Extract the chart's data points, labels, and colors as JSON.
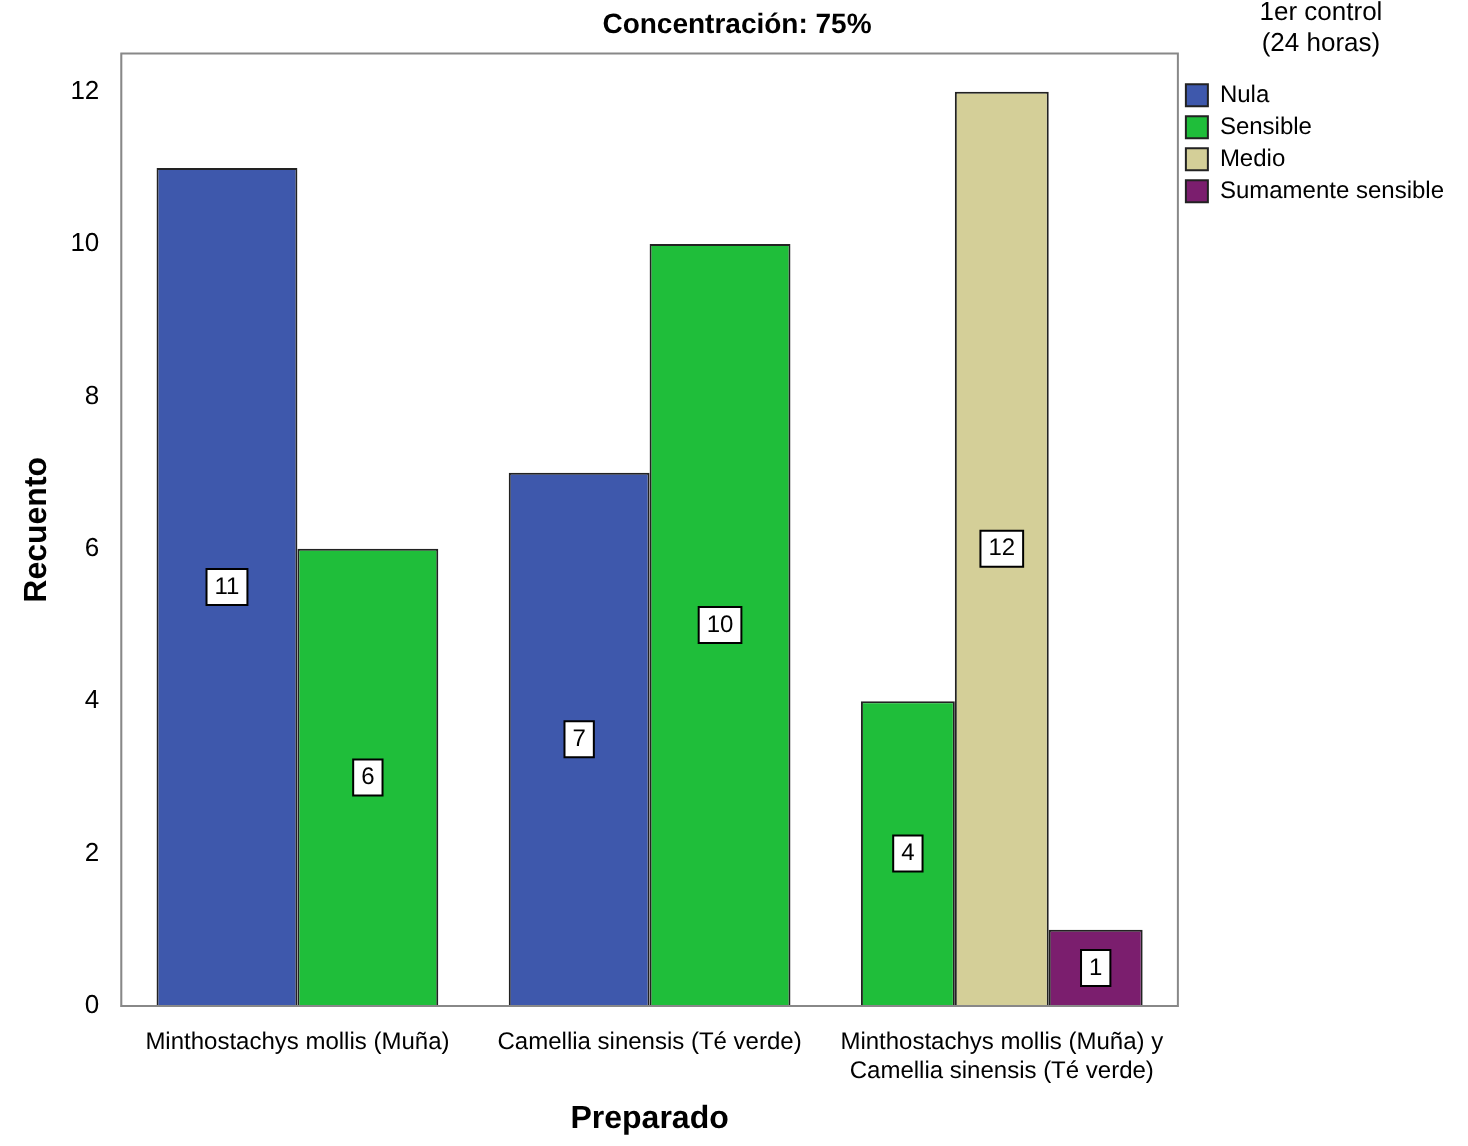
{
  "chart_data": {
    "type": "bar",
    "title": "Concentración: 75%",
    "xlabel": "Preparado",
    "ylabel": "Recuento",
    "legend_title": "1er control (24 horas)",
    "categories": [
      "Minthostachys mollis (Muña)",
      "Camellia sinensis (Té verde)",
      "Minthostachys mollis (Muña) y Camellia sinensis (Té verde)"
    ],
    "series": [
      {
        "name": "Nula",
        "color": "#3e58ac",
        "values": [
          11,
          7,
          null
        ]
      },
      {
        "name": "Sensible",
        "color": "#1fbe3a",
        "values": [
          6,
          10,
          4
        ]
      },
      {
        "name": "Medio",
        "color": "#d4cf98",
        "values": [
          null,
          null,
          12
        ]
      },
      {
        "name": "Sumamente sensible",
        "color": "#7b1e6e",
        "values": [
          null,
          null,
          1
        ]
      }
    ],
    "ylim": [
      0,
      12.5
    ],
    "yticks": [
      0,
      2,
      4,
      6,
      8,
      10,
      12
    ],
    "grid": false,
    "legend": "top right",
    "data_labels": true
  }
}
